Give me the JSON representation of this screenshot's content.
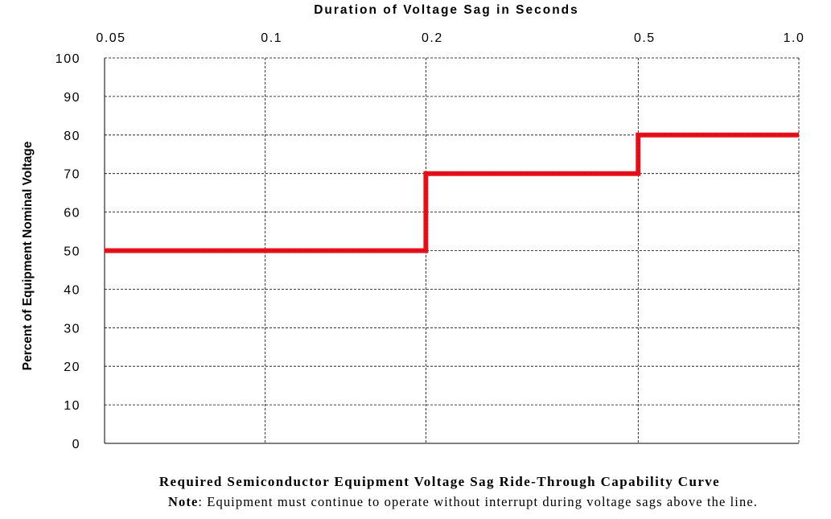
{
  "chart_data": {
    "type": "line",
    "title": "Duration of Voltage Sag in Seconds",
    "xlabel": "Duration of Voltage Sag in Seconds",
    "ylabel": "Percent of Equipment Nominal Voltage",
    "x_scale": "log",
    "x_position": "top",
    "xlim": [
      0.05,
      1.0
    ],
    "ylim": [
      0,
      100
    ],
    "x_ticks": [
      0.05,
      0.1,
      0.2,
      0.5,
      1.0
    ],
    "x_tick_labels": [
      "0.05",
      "0.1",
      "0.2",
      "0.5",
      "1.0"
    ],
    "y_ticks": [
      0,
      10,
      20,
      30,
      40,
      50,
      60,
      70,
      80,
      90,
      100
    ],
    "y_tick_labels": [
      "0",
      "10",
      "20",
      "30",
      "40",
      "50",
      "60",
      "70",
      "80",
      "90",
      "100"
    ],
    "grid": true,
    "series": [
      {
        "color": "#e8101a",
        "step": true,
        "x": [
          0.05,
          0.2,
          0.2,
          0.5,
          0.5,
          1.0
        ],
        "y": [
          50,
          50,
          70,
          70,
          80,
          80
        ]
      }
    ]
  },
  "caption": {
    "title": "Required Semiconductor Equipment Voltage Sag Ride-Through Capability Curve",
    "note_label": "Note",
    "note_text": ": Equipment must continue to operate without interrupt during voltage sags above the line."
  }
}
